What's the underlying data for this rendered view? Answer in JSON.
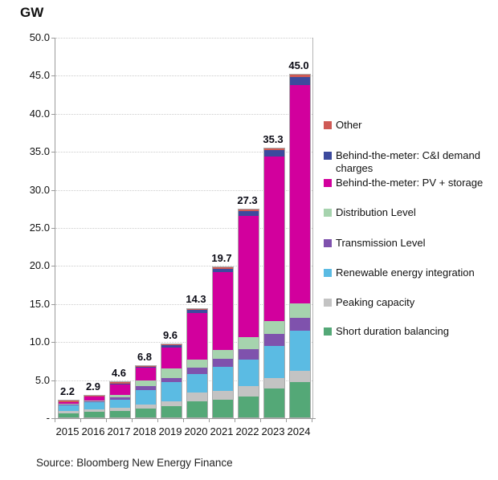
{
  "page": {
    "title": "GW",
    "source": "Source: Bloomberg New Energy Finance"
  },
  "chart_data": {
    "type": "bar",
    "stacked": true,
    "title": "GW",
    "unit": "GW",
    "xlabel": "",
    "ylabel": "GW",
    "ylim": [
      0,
      50
    ],
    "ytick_step": 5,
    "grid": "horizontal-dotted",
    "legend_position": "right",
    "categories": [
      "2015",
      "2016",
      "2017",
      "2018",
      "2019",
      "2020",
      "2021",
      "2022",
      "2023",
      "2024"
    ],
    "totals": [
      2.2,
      2.9,
      4.6,
      6.8,
      9.6,
      14.3,
      19.7,
      27.3,
      35.3,
      45.0
    ],
    "total_labels": [
      "2.2",
      "2.9",
      "4.6",
      "6.8",
      "9.6",
      "14.3",
      "19.7",
      "27.3",
      "35.3",
      "45.0"
    ],
    "ytick_labels": [
      {
        "value": 50,
        "label": "50.0"
      },
      {
        "value": 45,
        "label": "45.0"
      },
      {
        "value": 40,
        "label": "40.0"
      },
      {
        "value": 35,
        "label": "35.0"
      },
      {
        "value": 30,
        "label": "30.0"
      },
      {
        "value": 25,
        "label": "25.0"
      },
      {
        "value": 20,
        "label": "20.0"
      },
      {
        "value": 15,
        "label": "15.0"
      },
      {
        "value": 10,
        "label": "10.0"
      },
      {
        "value": 5,
        "label": "5.0"
      },
      {
        "value": 0,
        "label": "-"
      }
    ],
    "series": [
      {
        "name": "Short duration balancing",
        "color": "#54a877",
        "values": [
          0.5,
          0.75,
          0.8,
          1.2,
          1.5,
          2.1,
          2.3,
          2.7,
          3.8,
          4.6
        ]
      },
      {
        "name": "Peaking capacity",
        "color": "#c3c3c3",
        "values": [
          0.35,
          0.3,
          0.5,
          0.5,
          0.6,
          1.15,
          1.2,
          1.4,
          1.4,
          1.5
        ]
      },
      {
        "name": "Renewable energy integration",
        "color": "#5bbbe3",
        "values": [
          0.75,
          0.95,
          1.0,
          1.9,
          2.5,
          2.5,
          3.1,
          3.5,
          4.2,
          5.3
        ]
      },
      {
        "name": "Transmission Level",
        "color": "#7f52ad",
        "values": [
          0.1,
          0.1,
          0.3,
          0.5,
          0.6,
          0.8,
          1.1,
          1.4,
          1.6,
          1.7
        ]
      },
      {
        "name": "Distribution Level",
        "color": "#a6d3ae",
        "values": [
          0.1,
          0.15,
          0.4,
          0.8,
          1.2,
          1.05,
          1.2,
          1.5,
          1.7,
          1.9
        ]
      },
      {
        "name": "Behind-the-meter: PV + storage",
        "color": "#d2009d",
        "values": [
          0.2,
          0.45,
          1.3,
          1.6,
          2.8,
          6.1,
          10.2,
          16.0,
          21.6,
          28.7
        ]
      },
      {
        "name": "Behind-the-meter: C&I demand charges",
        "color": "#3c4a9d",
        "values": [
          0.05,
          0.05,
          0.15,
          0.15,
          0.3,
          0.4,
          0.45,
          0.6,
          0.8,
          1.0
        ]
      },
      {
        "name": "Other",
        "color": "#cf5a55",
        "values": [
          0.15,
          0.15,
          0.15,
          0.15,
          0.1,
          0.2,
          0.15,
          0.2,
          0.2,
          0.3
        ]
      }
    ],
    "legend": [
      {
        "label": "Other",
        "color": "#cf5a55"
      },
      {
        "label": "Behind-the-meter: C&I demand charges",
        "color": "#3c4a9d"
      },
      {
        "label": "Behind-the-meter: PV + storage",
        "color": "#d2009d"
      },
      {
        "label": "Distribution Level",
        "color": "#a6d3ae"
      },
      {
        "label": "Transmission Level",
        "color": "#7f52ad"
      },
      {
        "label": "Renewable energy integration",
        "color": "#5bbbe3"
      },
      {
        "label": "Peaking capacity",
        "color": "#c3c3c3"
      },
      {
        "label": "Short duration balancing",
        "color": "#54a877"
      }
    ]
  }
}
